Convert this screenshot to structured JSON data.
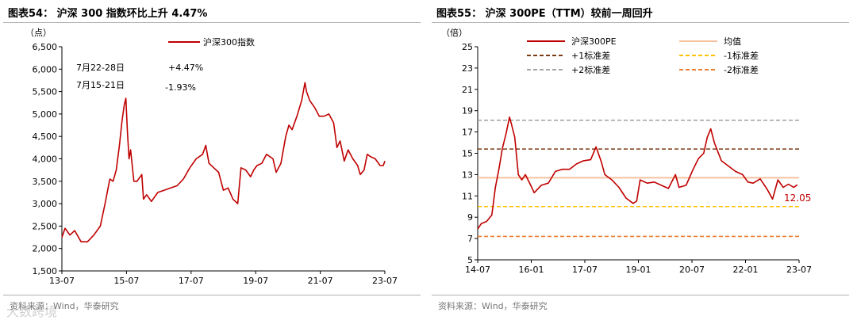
{
  "chart_data": [
    {
      "type": "line",
      "title": "图表54： 沪深 300 指数环比上升 4.47%",
      "ylabel": "（点）",
      "ylim": [
        1500,
        6500
      ],
      "yticks": [
        "1,500",
        "2,000",
        "2,500",
        "3,000",
        "3,500",
        "4,000",
        "4,500",
        "5,000",
        "5,500",
        "6,000",
        "6,500"
      ],
      "ytick_values": [
        1500,
        2000,
        2500,
        3000,
        3500,
        4000,
        4500,
        5000,
        5500,
        6000,
        6500
      ],
      "xticks": [
        "13-07",
        "15-07",
        "17-07",
        "19-07",
        "21-07",
        "23-07"
      ],
      "xlim": [
        2013.5,
        2023.6
      ],
      "grid": false,
      "legend_position": "top-right",
      "colors": {
        "series": "#c00000"
      },
      "annotations": [
        {
          "label": "7月22-28日",
          "value": "+4.47%"
        },
        {
          "label": "7月15-21日",
          "value": "-1.93%"
        }
      ],
      "series": [
        {
          "name": "沪深300指数",
          "x": [
            2013.5,
            2013.6,
            2013.75,
            2013.9,
            2014.1,
            2014.3,
            2014.5,
            2014.7,
            2014.85,
            2015.0,
            2015.1,
            2015.2,
            2015.3,
            2015.38,
            2015.45,
            2015.5,
            2015.55,
            2015.6,
            2015.65,
            2015.75,
            2015.85,
            2016.0,
            2016.05,
            2016.15,
            2016.3,
            2016.5,
            2016.7,
            2016.9,
            2017.1,
            2017.3,
            2017.5,
            2017.7,
            2017.9,
            2018.0,
            2018.1,
            2018.25,
            2018.4,
            2018.55,
            2018.7,
            2018.85,
            2019.0,
            2019.1,
            2019.25,
            2019.4,
            2019.5,
            2019.6,
            2019.75,
            2019.9,
            2020.1,
            2020.2,
            2020.35,
            2020.5,
            2020.6,
            2020.7,
            2020.85,
            2021.0,
            2021.1,
            2021.15,
            2021.25,
            2021.4,
            2021.55,
            2021.7,
            2021.85,
            2022.0,
            2022.1,
            2022.2,
            2022.33,
            2022.45,
            2022.6,
            2022.75,
            2022.83,
            2022.95,
            2023.05,
            2023.15,
            2023.3,
            2023.45,
            2023.55,
            2023.6
          ],
          "y": [
            2250,
            2450,
            2300,
            2400,
            2150,
            2150,
            2300,
            2500,
            3000,
            3550,
            3500,
            3750,
            4300,
            4850,
            5200,
            5350,
            4600,
            4000,
            4200,
            3500,
            3500,
            3650,
            3100,
            3200,
            3050,
            3250,
            3300,
            3350,
            3400,
            3550,
            3800,
            4000,
            4100,
            4300,
            3900,
            3800,
            3700,
            3300,
            3350,
            3100,
            3000,
            3800,
            3750,
            3600,
            3750,
            3850,
            3900,
            4100,
            4000,
            3700,
            3900,
            4500,
            4750,
            4650,
            4950,
            5300,
            5700,
            5500,
            5300,
            5150,
            4950,
            4950,
            5000,
            4800,
            4250,
            4400,
            3950,
            4200,
            4000,
            3850,
            3650,
            3750,
            4100,
            4050,
            4000,
            3850,
            3850,
            3950
          ]
        }
      ]
    },
    {
      "type": "line",
      "title": "图表55： 沪深 300PE（TTM）较前一周回升",
      "ylabel": "（倍）",
      "ylim": [
        5,
        25
      ],
      "yticks": [
        "5",
        "7",
        "9",
        "11",
        "13",
        "15",
        "17",
        "19",
        "21",
        "23",
        "25"
      ],
      "ytick_values": [
        5,
        7,
        9,
        11,
        13,
        15,
        17,
        19,
        21,
        23,
        25
      ],
      "xticks": [
        "14-07",
        "16-01",
        "17-07",
        "19-01",
        "20-07",
        "22-01",
        "23-07"
      ],
      "xlim": [
        2014.5,
        2023.6
      ],
      "grid": false,
      "legend_position": "top",
      "last_value_label": "12.05",
      "colors": {
        "pe": "#c00000",
        "mean": "#f5c2a0",
        "plus1": "#7b3b14",
        "minus1": "#ffc000",
        "plus2": "#a6a6a6",
        "minus2": "#ed7d31"
      },
      "series": [
        {
          "name": "沪深300PE",
          "x": [
            2014.5,
            2014.6,
            2014.75,
            2014.9,
            2015.0,
            2015.1,
            2015.2,
            2015.3,
            2015.4,
            2015.45,
            2015.55,
            2015.65,
            2015.75,
            2015.85,
            2016.0,
            2016.1,
            2016.3,
            2016.5,
            2016.7,
            2016.9,
            2017.1,
            2017.3,
            2017.5,
            2017.7,
            2017.85,
            2018.0,
            2018.1,
            2018.3,
            2018.5,
            2018.7,
            2018.9,
            2019.0,
            2019.1,
            2019.3,
            2019.5,
            2019.7,
            2019.9,
            2020.1,
            2020.2,
            2020.4,
            2020.6,
            2020.75,
            2020.9,
            2021.0,
            2021.1,
            2021.2,
            2021.4,
            2021.6,
            2021.8,
            2022.0,
            2022.15,
            2022.3,
            2022.5,
            2022.7,
            2022.85,
            2023.0,
            2023.15,
            2023.3,
            2023.45,
            2023.55
          ],
          "y": [
            7.9,
            8.4,
            8.6,
            9.2,
            11.8,
            13.5,
            15.5,
            16.8,
            18.4,
            17.8,
            16.5,
            13.0,
            12.5,
            13.0,
            12.0,
            11.3,
            12.0,
            12.2,
            13.3,
            13.5,
            13.5,
            14.0,
            14.3,
            14.4,
            15.6,
            14.2,
            13.0,
            12.5,
            11.8,
            10.8,
            10.3,
            10.5,
            12.5,
            12.2,
            12.3,
            12.0,
            11.7,
            13.0,
            11.8,
            12.0,
            13.5,
            14.5,
            15.0,
            16.5,
            17.3,
            16.0,
            14.3,
            13.8,
            13.3,
            13.0,
            12.3,
            12.2,
            12.6,
            11.6,
            10.7,
            12.5,
            11.8,
            12.1,
            11.8,
            12.05
          ]
        },
        {
          "name": "均值",
          "value": 12.7
        },
        {
          "name": "+1标准差",
          "value": 15.4
        },
        {
          "name": "-1标准差",
          "value": 10.0
        },
        {
          "name": "+2标准差",
          "value": 18.1
        },
        {
          "name": "-2标准差",
          "value": 7.2
        }
      ]
    }
  ],
  "footer": {
    "source_left": "资料来源：Wind，华泰研究",
    "source_right": "资料来源：Wind，华泰研究",
    "watermark": "大数跨境"
  }
}
